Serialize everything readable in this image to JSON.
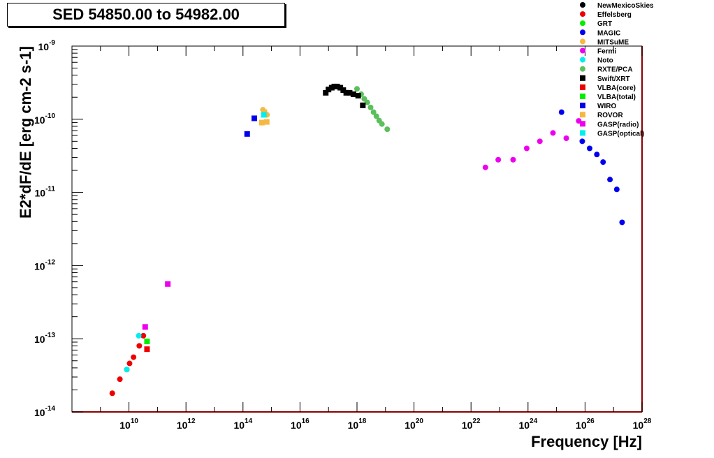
{
  "title": "SED 54850.00 to 54982.00",
  "chart_data": {
    "type": "scatter",
    "xlabel": "Frequency [Hz]",
    "ylabel": "E2*dF/dE [erg cm-2 s-1]",
    "xscale": "log",
    "yscale": "log",
    "xlim": [
      100000000.0,
      1e+28
    ],
    "ylim": [
      1e-14,
      1e-09
    ],
    "x_tick_labels": [
      "10",
      "10",
      "10",
      "10",
      "10",
      "10",
      "10",
      "10",
      "10",
      "10"
    ],
    "x_tick_exponents": [
      "10",
      "12",
      "14",
      "16",
      "18",
      "20",
      "22",
      "24",
      "26",
      "28"
    ],
    "y_tick_labels": [
      "10",
      "10",
      "10",
      "10",
      "10",
      "10"
    ],
    "y_tick_exponents": [
      "-14",
      "-13",
      "-12",
      "-11",
      "-10",
      "-9"
    ],
    "legend_position": "top-right",
    "series": [
      {
        "name": "NewMexicoSkies",
        "color": "#000000",
        "marker": "circle",
        "points": []
      },
      {
        "name": "Effelsberg",
        "color": "#ee0000",
        "marker": "circle",
        "points": [
          {
            "x": 2600000000.0,
            "y": 1.8e-14
          },
          {
            "x": 4800000000.0,
            "y": 2.8e-14
          },
          {
            "x": 8400000000.0,
            "y": 3.8e-14
          },
          {
            "x": 10500000000.0,
            "y": 4.6e-14
          },
          {
            "x": 14500000000.0,
            "y": 5.6e-14
          },
          {
            "x": 23000000000.0,
            "y": 8e-14
          },
          {
            "x": 32000000000.0,
            "y": 1.1e-13
          }
        ]
      },
      {
        "name": "GRT",
        "color": "#00ee00",
        "marker": "circle",
        "points": []
      },
      {
        "name": "MAGIC",
        "color": "#0000ee",
        "marker": "circle",
        "points": [
          {
            "x": 1.5e+25,
            "y": 1.25e-10
          },
          {
            "x": 8e+25,
            "y": 5e-11
          },
          {
            "x": 1.45e+26,
            "y": 4e-11
          },
          {
            "x": 2.6e+26,
            "y": 3.3e-11
          },
          {
            "x": 4.3e+26,
            "y": 2.6e-11
          },
          {
            "x": 7.5e+26,
            "y": 1.5e-11
          },
          {
            "x": 1.3e+27,
            "y": 1.1e-11
          },
          {
            "x": 2e+27,
            "y": 3.9e-12
          }
        ]
      },
      {
        "name": "MITSuME",
        "color": "#f5b942",
        "marker": "circle",
        "points": [
          {
            "x": 500000000000000.0,
            "y": 1.35e-10
          },
          {
            "x": 580000000000000.0,
            "y": 1.25e-10
          },
          {
            "x": 700000000000000.0,
            "y": 1.15e-10
          }
        ]
      },
      {
        "name": "Fermi",
        "color": "#ee00ee",
        "marker": "circle",
        "points": [
          {
            "x": 3.2e+22,
            "y": 2.2e-11
          },
          {
            "x": 9e+22,
            "y": 2.8e-11
          },
          {
            "x": 3e+23,
            "y": 2.8e-11
          },
          {
            "x": 9e+23,
            "y": 4e-11
          },
          {
            "x": 2.6e+24,
            "y": 5e-11
          },
          {
            "x": 7.5e+24,
            "y": 6.5e-11
          },
          {
            "x": 2.2e+25,
            "y": 5.5e-11
          },
          {
            "x": 6e+25,
            "y": 9.5e-11
          }
        ]
      },
      {
        "name": "Noto",
        "color": "#00eeee",
        "marker": "circle",
        "points": [
          {
            "x": 8400000000.0,
            "y": 3.8e-14
          },
          {
            "x": 22000000000.0,
            "y": 1.1e-13
          }
        ]
      },
      {
        "name": "RXTE/PCA",
        "color": "#5cbf5c",
        "marker": "circle",
        "points": [
          {
            "x": 1e+18,
            "y": 2.6e-10
          },
          {
            "x": 1.4e+18,
            "y": 2.2e-10
          },
          {
            "x": 1.8e+18,
            "y": 1.9e-10
          },
          {
            "x": 2.3e+18,
            "y": 1.7e-10
          },
          {
            "x": 3e+18,
            "y": 1.45e-10
          },
          {
            "x": 3.8e+18,
            "y": 1.25e-10
          },
          {
            "x": 4.8e+18,
            "y": 1.1e-10
          },
          {
            "x": 6e+18,
            "y": 9.6e-11
          },
          {
            "x": 7.5e+18,
            "y": 8.6e-11
          },
          {
            "x": 1.15e+19,
            "y": 7.3e-11
          }
        ]
      },
      {
        "name": "Swift/XRT",
        "color": "#000000",
        "marker": "square",
        "points": [
          {
            "x": 8e+16,
            "y": 2.3e-10
          },
          {
            "x": 1e+17,
            "y": 2.55e-10
          },
          {
            "x": 1.3e+17,
            "y": 2.7e-10
          },
          {
            "x": 1.6e+17,
            "y": 2.8e-10
          },
          {
            "x": 2e+17,
            "y": 2.8e-10
          },
          {
            "x": 2.6e+17,
            "y": 2.7e-10
          },
          {
            "x": 3.3e+17,
            "y": 2.5e-10
          },
          {
            "x": 4.2e+17,
            "y": 2.3e-10
          },
          {
            "x": 5.5e+17,
            "y": 2.3e-10
          },
          {
            "x": 7.5e+17,
            "y": 2.2e-10
          },
          {
            "x": 1.1e+18,
            "y": 2.1e-10
          },
          {
            "x": 1.6e+18,
            "y": 1.55e-10
          }
        ]
      },
      {
        "name": "VLBA(core)",
        "color": "#ee0000",
        "marker": "square",
        "points": [
          {
            "x": 43000000000.0,
            "y": 7.2e-14
          }
        ]
      },
      {
        "name": "VLBA(total)",
        "color": "#00ee00",
        "marker": "square",
        "points": [
          {
            "x": 43000000000.0,
            "y": 9.2e-14
          }
        ]
      },
      {
        "name": "WIRO",
        "color": "#0000ee",
        "marker": "square",
        "points": [
          {
            "x": 140000000000000.0,
            "y": 6.3e-11
          },
          {
            "x": 250000000000000.0,
            "y": 1.03e-10
          }
        ]
      },
      {
        "name": "ROVOR",
        "color": "#f5b942",
        "marker": "square",
        "points": [
          {
            "x": 460000000000000.0,
            "y": 9e-11
          },
          {
            "x": 560000000000000.0,
            "y": 1.25e-10
          },
          {
            "x": 680000000000000.0,
            "y": 9.2e-11
          }
        ]
      },
      {
        "name": "GASP(radio)",
        "color": "#ee00ee",
        "marker": "square",
        "points": [
          {
            "x": 37000000000.0,
            "y": 1.45e-13
          },
          {
            "x": 230000000000.0,
            "y": 5.6e-13
          }
        ]
      },
      {
        "name": "GASP(optical)",
        "color": "#00eeee",
        "marker": "square",
        "points": [
          {
            "x": 540000000000000.0,
            "y": 1.15e-10
          }
        ]
      }
    ]
  }
}
